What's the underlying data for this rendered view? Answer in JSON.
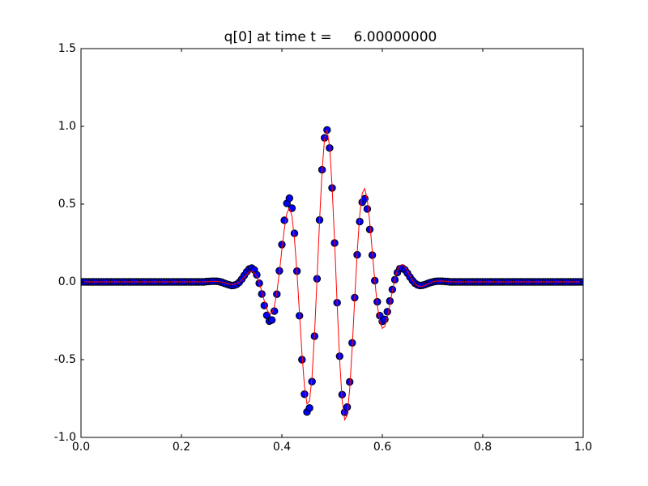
{
  "chart_data": {
    "type": "scatter",
    "title": "q[0] at time t =     6.00000000",
    "xlim": [
      0,
      1
    ],
    "ylim": [
      -1,
      1.5
    ],
    "xticks": [
      {
        "value": 0,
        "label": "0.0"
      },
      0.2,
      0.4,
      0.6,
      0.8,
      {
        "value": 1,
        "label": "1.0"
      }
    ],
    "yticks": [
      {
        "value": -1,
        "label": "-1.0"
      },
      -0.5,
      {
        "value": 0,
        "label": "0.0"
      },
      0.5,
      {
        "value": 1,
        "label": "1.0"
      },
      1.5
    ],
    "x": [
      0,
      0.005,
      0.01,
      0.015,
      0.02,
      0.025,
      0.03,
      0.035,
      0.04,
      0.045,
      0.05,
      0.055,
      0.06,
      0.065,
      0.07,
      0.075,
      0.08,
      0.085,
      0.09,
      0.095,
      0.1,
      0.105,
      0.11,
      0.115,
      0.12,
      0.125,
      0.13,
      0.135,
      0.14,
      0.145,
      0.15,
      0.155,
      0.16,
      0.165,
      0.17,
      0.175,
      0.18,
      0.185,
      0.19,
      0.195,
      0.2,
      0.205,
      0.21,
      0.215,
      0.22,
      0.225,
      0.23,
      0.235,
      0.24,
      0.245,
      0.25,
      0.255,
      0.26,
      0.265,
      0.27,
      0.275,
      0.28,
      0.285,
      0.29,
      0.295,
      0.3,
      0.305,
      0.31,
      0.315,
      0.32,
      0.325,
      0.33,
      0.335,
      0.34,
      0.345,
      0.35,
      0.355,
      0.36,
      0.365,
      0.37,
      0.375,
      0.38,
      0.385,
      0.39,
      0.395,
      0.4,
      0.405,
      0.41,
      0.415,
      0.42,
      0.425,
      0.43,
      0.435,
      0.44,
      0.445,
      0.45,
      0.455,
      0.46,
      0.465,
      0.47,
      0.475,
      0.48,
      0.485,
      0.49,
      0.495,
      0.5,
      0.505,
      0.51,
      0.515,
      0.52,
      0.525,
      0.53,
      0.535,
      0.54,
      0.545,
      0.55,
      0.555,
      0.56,
      0.565,
      0.57,
      0.575,
      0.58,
      0.585,
      0.59,
      0.595,
      0.6,
      0.605,
      0.61,
      0.615,
      0.62,
      0.625,
      0.63,
      0.635,
      0.64,
      0.645,
      0.65,
      0.655,
      0.66,
      0.665,
      0.67,
      0.675,
      0.68,
      0.685,
      0.69,
      0.695,
      0.7,
      0.705,
      0.71,
      0.715,
      0.72,
      0.725,
      0.73,
      0.735,
      0.74,
      0.745,
      0.75,
      0.755,
      0.76,
      0.765,
      0.77,
      0.775,
      0.78,
      0.785,
      0.79,
      0.795,
      0.8,
      0.805,
      0.81,
      0.815,
      0.82,
      0.825,
      0.83,
      0.835,
      0.84,
      0.845,
      0.85,
      0.855,
      0.86,
      0.865,
      0.87,
      0.875,
      0.88,
      0.885,
      0.89,
      0.895,
      0.9,
      0.905,
      0.91,
      0.915,
      0.92,
      0.925,
      0.93,
      0.935,
      0.94,
      0.945,
      0.95,
      0.955,
      0.96,
      0.965,
      0.97,
      0.975,
      0.98,
      0.985,
      0.99,
      0.995,
      1
    ],
    "series": [
      {
        "type": "scatter",
        "color": "#0000ff",
        "edgecolor": "#000000",
        "values": [
          0,
          0,
          0,
          0,
          0,
          0,
          0,
          0,
          0,
          0,
          0,
          0,
          0,
          0,
          0,
          0,
          0,
          0,
          0,
          0,
          0,
          0,
          0,
          0,
          0,
          0,
          0,
          0,
          0,
          0,
          0,
          0,
          0,
          0,
          0,
          0,
          0,
          0,
          0,
          0,
          0,
          0,
          0,
          0,
          0,
          0,
          0,
          0,
          0,
          0,
          0.002,
          0.003,
          0.004,
          0.004,
          0.004,
          0.002,
          -0.002,
          -0.008,
          -0.014,
          -0.019,
          -0.023,
          -0.022,
          -0.016,
          -0.003,
          0.017,
          0.041,
          0.065,
          0.083,
          0.089,
          0.077,
          0.045,
          -0.009,
          -0.078,
          -0.152,
          -0.215,
          -0.252,
          -0.245,
          -0.188,
          -0.079,
          0.071,
          0.24,
          0.396,
          0.505,
          0.538,
          0.474,
          0.312,
          0.069,
          -0.218,
          -0.5,
          -0.722,
          -0.836,
          -0.811,
          -0.641,
          -0.349,
          0.02,
          0.398,
          0.721,
          0.926,
          0.977,
          0.861,
          0.604,
          0.25,
          -0.134,
          -0.478,
          -0.725,
          -0.838,
          -0.805,
          -0.643,
          -0.392,
          -0.101,
          0.174,
          0.388,
          0.512,
          0.535,
          0.469,
          0.337,
          0.172,
          0.008,
          -0.128,
          -0.217,
          -0.254,
          -0.241,
          -0.192,
          -0.123,
          -0.049,
          0.014,
          0.06,
          0.085,
          0.089,
          0.077,
          0.056,
          0.031,
          0.009,
          -0.009,
          -0.019,
          -0.023,
          -0.022,
          -0.017,
          -0.011,
          -0.005,
          -0.001,
          0.003,
          0.004,
          0.004,
          0.004,
          0.003,
          0.002,
          0,
          0,
          0,
          0,
          0,
          0,
          0,
          0,
          0,
          0,
          0,
          0,
          0,
          0,
          0,
          0,
          0,
          0,
          0,
          0,
          0,
          0,
          0,
          0,
          0,
          0,
          0,
          0,
          0,
          0,
          0,
          0,
          0,
          0,
          0,
          0,
          0,
          0,
          0,
          0,
          0,
          0,
          0,
          0,
          0,
          0,
          0,
          0,
          0,
          0,
          0,
          0,
          0,
          0
        ]
      },
      {
        "type": "line",
        "color": "#ff0000",
        "values": [
          0,
          0,
          0,
          0,
          0,
          0,
          0,
          0,
          0,
          0,
          0,
          0,
          0,
          0,
          0,
          0,
          0,
          0,
          0,
          0,
          0,
          0,
          0,
          0,
          0,
          0,
          0,
          0,
          0,
          0,
          0,
          0,
          0,
          0,
          0,
          0,
          0,
          0,
          0,
          0,
          0,
          0,
          0,
          0,
          0,
          0,
          0,
          0,
          0,
          0,
          0.001,
          0.002,
          0.003,
          0.003,
          0.003,
          0.001,
          -0.001,
          -0.005,
          -0.01,
          -0.013,
          -0.016,
          -0.016,
          -0.011,
          -0.002,
          0.012,
          0.03,
          0.048,
          0.063,
          0.068,
          0.059,
          0.035,
          -0.007,
          -0.062,
          -0.122,
          -0.174,
          -0.206,
          -0.202,
          -0.157,
          -0.067,
          0.06,
          0.206,
          0.343,
          0.441,
          0.475,
          0.422,
          0.28,
          0.063,
          -0.199,
          -0.461,
          -0.671,
          -0.784,
          -0.767,
          -0.612,
          -0.336,
          0.019,
          0.389,
          0.711,
          0.92,
          0.979,
          0.87,
          0.615,
          0.257,
          -0.139,
          -0.498,
          -0.761,
          -0.887,
          -0.858,
          -0.691,
          -0.424,
          -0.11,
          0.191,
          0.429,
          0.57,
          0.6,
          0.53,
          0.384,
          0.197,
          0.009,
          -0.149,
          -0.254,
          -0.299,
          -0.286,
          -0.229,
          -0.148,
          -0.059,
          0.017,
          0.074,
          0.105,
          0.111,
          0.096,
          0.07,
          0.039,
          0.011,
          -0.012,
          -0.025,
          -0.03,
          -0.029,
          -0.022,
          -0.015,
          -0.007,
          -0.001,
          0.004,
          0.005,
          0.005,
          0.005,
          0.004,
          0.003,
          0,
          0,
          0,
          0,
          0,
          0,
          0,
          0,
          0,
          0,
          0,
          0,
          0,
          0,
          0,
          0,
          0,
          0,
          0,
          0,
          0,
          0,
          0,
          0,
          0,
          0,
          0,
          0,
          0,
          0,
          0,
          0,
          0,
          0,
          0,
          0,
          0,
          0,
          0,
          0,
          0,
          0,
          0,
          0,
          0,
          0,
          0,
          0,
          0,
          0,
          0,
          0,
          0,
          0
        ]
      }
    ]
  }
}
